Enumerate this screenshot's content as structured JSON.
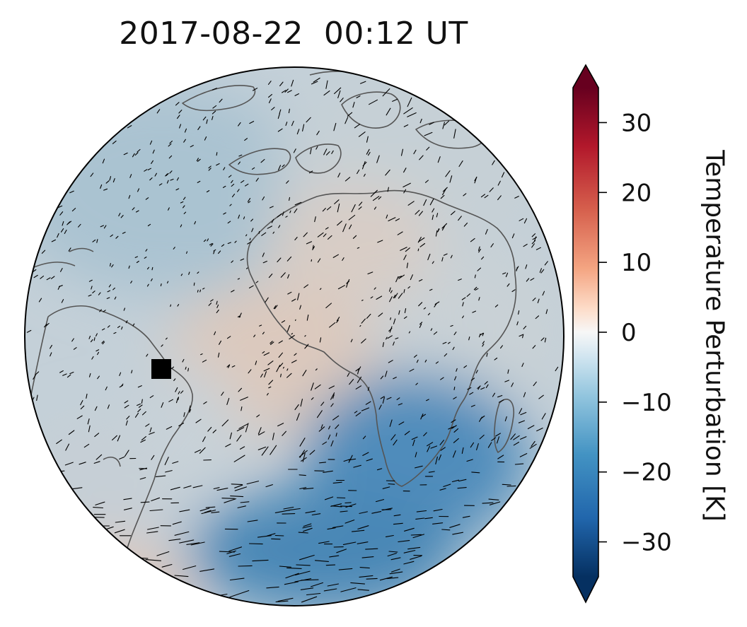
{
  "title": "2017-08-22  00:12 UT",
  "colorbar": {
    "label": "Temperature Perturbation [K]",
    "min": -35,
    "max": 35,
    "extend": "both",
    "colormap": "RdBu_r",
    "ticks": [
      30,
      20,
      10,
      0,
      -10,
      -20,
      -30
    ],
    "tick_labels": [
      "30",
      "20",
      "10",
      "0",
      "−10",
      "−20",
      "−30"
    ]
  },
  "map": {
    "projection": "orthographic",
    "features": [
      "coastlines",
      "temperature-perturbation-field",
      "wind-vectors",
      "location-marker"
    ],
    "marker_color": "#000000",
    "coastline_color": "#505050",
    "colors": {
      "cold": "#2f78b0",
      "cool": "#a9c2d0",
      "neutral": "#d2d2d2",
      "warm": "#dcc8bc",
      "ocean_base": "#bccdd7"
    }
  }
}
